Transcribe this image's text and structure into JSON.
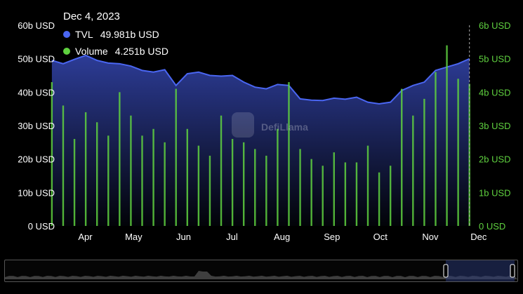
{
  "tooltip": {
    "date": "Dec 4, 2023",
    "tvl_label": "TVL",
    "tvl_value": "49.981b USD",
    "volume_label": "Volume",
    "volume_value": "4.251b USD"
  },
  "watermark": "DefiLlama",
  "colors": {
    "tvl": "#4a66f2",
    "tvl_fill_top": "#2f3f9e",
    "volume": "#5fd13f",
    "axis_left_text": "#ffffff",
    "axis_right_text": "#5fd13f",
    "background": "#000000"
  },
  "chart_data": {
    "type": "bar+area",
    "title": "",
    "x_axis": {
      "tick_labels": [
        "Apr",
        "May",
        "Jun",
        "Jul",
        "Aug",
        "Sep",
        "Oct",
        "Nov",
        "Dec"
      ]
    },
    "y_left": {
      "label": "",
      "ylim": [
        0,
        60
      ],
      "unit": "b USD",
      "tick_labels": [
        "0 USD",
        "10b USD",
        "20b USD",
        "30b USD",
        "40b USD",
        "50b USD",
        "60b USD"
      ]
    },
    "y_right": {
      "label": "",
      "ylim": [
        0,
        6
      ],
      "unit": "b USD",
      "tick_labels": [
        "0 USD",
        "1b USD",
        "2b USD",
        "3b USD",
        "4b USD",
        "5b USD",
        "6b USD"
      ]
    },
    "grid": false,
    "legend": "tooltip top-left",
    "series": [
      {
        "name": "TVL",
        "kind": "area",
        "axis": "left",
        "x": [
          "2023-03-20",
          "2023-03-27",
          "2023-04-03",
          "2023-04-10",
          "2023-04-17",
          "2023-04-24",
          "2023-05-01",
          "2023-05-08",
          "2023-05-15",
          "2023-05-22",
          "2023-05-29",
          "2023-06-05",
          "2023-06-12",
          "2023-06-19",
          "2023-06-26",
          "2023-07-03",
          "2023-07-10",
          "2023-07-17",
          "2023-07-24",
          "2023-07-31",
          "2023-08-07",
          "2023-08-14",
          "2023-08-21",
          "2023-08-28",
          "2023-09-04",
          "2023-09-11",
          "2023-09-18",
          "2023-09-25",
          "2023-10-02",
          "2023-10-09",
          "2023-10-16",
          "2023-10-23",
          "2023-10-30",
          "2023-11-06",
          "2023-11-13",
          "2023-11-20",
          "2023-11-27",
          "2023-12-04"
        ],
        "values": [
          49.5,
          48.5,
          49.8,
          51.0,
          49.5,
          48.7,
          48.5,
          47.8,
          46.5,
          46.0,
          46.7,
          42.0,
          45.5,
          46.0,
          45.0,
          44.8,
          45.0,
          43.0,
          41.5,
          41.0,
          42.3,
          42.0,
          38.0,
          37.6,
          37.5,
          38.2,
          37.9,
          38.5,
          37.0,
          36.5,
          37.0,
          40.5,
          42.0,
          43.0,
          46.5,
          47.5,
          48.5,
          49.98
        ]
      },
      {
        "name": "Volume",
        "kind": "bar",
        "axis": "right",
        "x": [
          "2023-03-20",
          "2023-03-27",
          "2023-04-03",
          "2023-04-10",
          "2023-04-17",
          "2023-04-24",
          "2023-05-01",
          "2023-05-08",
          "2023-05-15",
          "2023-05-22",
          "2023-05-29",
          "2023-06-05",
          "2023-06-12",
          "2023-06-19",
          "2023-06-26",
          "2023-07-03",
          "2023-07-10",
          "2023-07-17",
          "2023-07-24",
          "2023-07-31",
          "2023-08-07",
          "2023-08-14",
          "2023-08-21",
          "2023-08-28",
          "2023-09-04",
          "2023-09-11",
          "2023-09-18",
          "2023-09-25",
          "2023-10-02",
          "2023-10-09",
          "2023-10-16",
          "2023-10-23",
          "2023-10-30",
          "2023-11-06",
          "2023-11-13",
          "2023-11-20",
          "2023-11-27",
          "2023-12-04"
        ],
        "values": [
          4.3,
          3.6,
          2.6,
          3.4,
          3.1,
          2.7,
          4.0,
          3.3,
          2.7,
          2.9,
          2.5,
          4.1,
          2.9,
          2.4,
          2.1,
          3.3,
          2.6,
          2.5,
          2.3,
          2.1,
          2.9,
          4.3,
          2.3,
          2.0,
          1.8,
          2.2,
          1.9,
          1.9,
          2.4,
          1.6,
          1.8,
          4.1,
          3.3,
          3.8,
          4.6,
          5.4,
          4.4,
          4.25
        ]
      }
    ]
  }
}
